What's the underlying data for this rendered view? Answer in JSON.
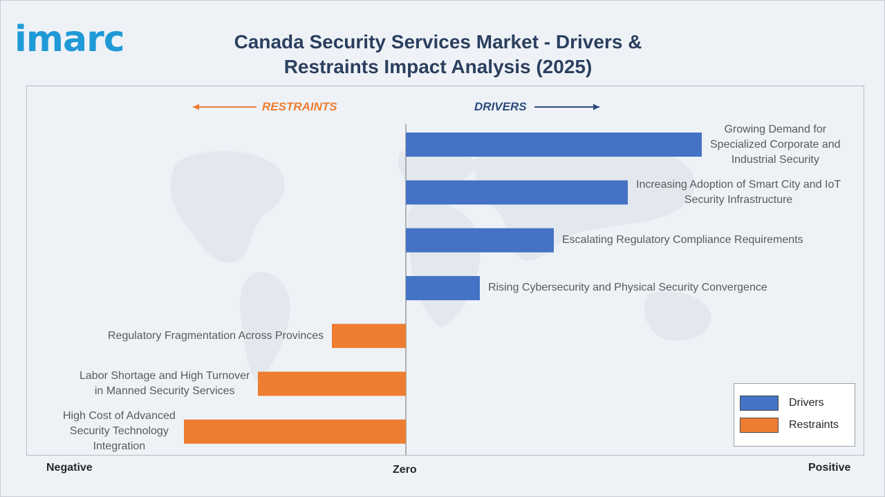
{
  "logo": {
    "text": "imarc"
  },
  "title": "Canada Security Services Market - Drivers & Restraints Impact Analysis (2025)",
  "labels": {
    "restraints_header": "RESTRAINTS",
    "drivers_header": "DRIVERS",
    "negative": "Negative",
    "zero": "Zero",
    "positive": "Positive"
  },
  "legend": [
    {
      "label": "Drivers",
      "color": "#4472c4"
    },
    {
      "label": "Restraints",
      "color": "#ed7d31"
    }
  ],
  "colors": {
    "drivers": "#4472c4",
    "restraints": "#ed7d31",
    "title": "#2b3f5e",
    "logo": "#1f9ad6"
  },
  "chart_data": {
    "type": "bar",
    "orientation": "horizontal",
    "title": "Canada Security Services Market - Drivers & Restraints Impact Analysis (2025)",
    "xlim": [
      -3,
      4
    ],
    "grid": false,
    "legend_position": "bottom-right",
    "series": [
      {
        "name": "Drivers",
        "categories": [
          "Growing Demand for Specialized Corporate and Industrial Security",
          "Increasing Adoption of Smart City and IoT Security Infrastructure",
          "Escalating Regulatory Compliance Requirements",
          "Rising Cybersecurity and Physical Security Convergence"
        ],
        "values": [
          4,
          3,
          2,
          1
        ]
      },
      {
        "name": "Restraints",
        "categories": [
          "Regulatory Fragmentation Across Provinces",
          "Labor Shortage and High Turnover in Manned Security Services",
          "High Cost of Advanced Security Technology Integration"
        ],
        "values": [
          -1,
          -2,
          -3
        ]
      }
    ],
    "category_lines": [
      [
        "Growing Demand for",
        "Specialized Corporate and",
        "Industrial Security"
      ],
      [
        "Increasing Adoption of Smart City and IoT",
        "Security Infrastructure"
      ],
      [
        "Escalating Regulatory Compliance Requirements"
      ],
      [
        "Rising Cybersecurity and Physical Security Convergence"
      ],
      [
        "Regulatory Fragmentation Across Provinces"
      ],
      [
        "Labor Shortage and High Turnover",
        "in Manned Security Services"
      ],
      [
        "High Cost of Advanced",
        "Security Technology",
        "Integration"
      ]
    ]
  }
}
